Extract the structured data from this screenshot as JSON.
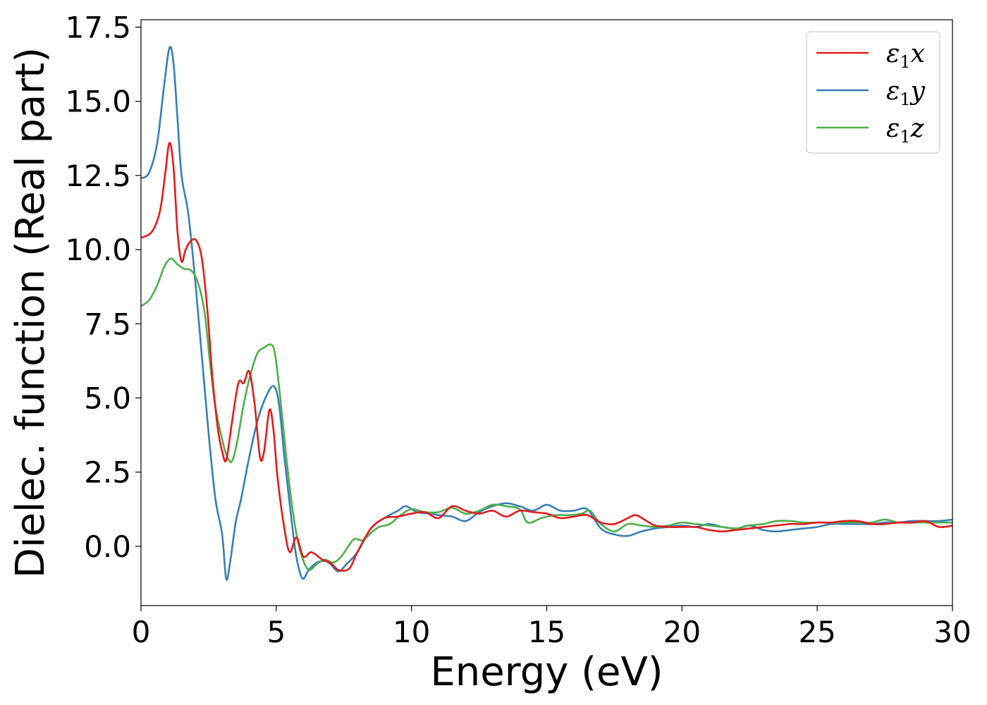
{
  "chart_data": {
    "type": "line",
    "xlabel": "Energy (eV)",
    "ylabel": "Dielec. function (Real part)",
    "xlim": [
      0,
      30
    ],
    "ylim": [
      -2.0,
      17.75
    ],
    "xticks": [
      0,
      5,
      10,
      15,
      20,
      25,
      30
    ],
    "xtick_labels": [
      "0",
      "5",
      "10",
      "15",
      "20",
      "25",
      "30"
    ],
    "yticks": [
      0.0,
      2.5,
      5.0,
      7.5,
      10.0,
      12.5,
      15.0,
      17.5
    ],
    "ytick_labels": [
      "0.0",
      "2.5",
      "5.0",
      "7.5",
      "10.0",
      "12.5",
      "15.0",
      "17.5"
    ],
    "grid": false,
    "legend_position": "top-right",
    "series": [
      {
        "name": "ε1x",
        "label_main": "ε",
        "label_sub": "1",
        "label_tail": "x",
        "color": "#e41a1c",
        "points": [
          [
            0,
            10.4
          ],
          [
            0.4,
            10.6
          ],
          [
            0.7,
            11.3
          ],
          [
            0.9,
            12.6
          ],
          [
            1.05,
            13.6
          ],
          [
            1.2,
            12.8
          ],
          [
            1.35,
            10.6
          ],
          [
            1.5,
            9.6
          ],
          [
            1.65,
            10.0
          ],
          [
            1.85,
            10.3
          ],
          [
            2.05,
            10.3
          ],
          [
            2.25,
            9.7
          ],
          [
            2.45,
            8.0
          ],
          [
            2.65,
            5.6
          ],
          [
            2.85,
            3.9
          ],
          [
            3.0,
            3.2
          ],
          [
            3.15,
            2.9
          ],
          [
            3.35,
            4.1
          ],
          [
            3.6,
            5.5
          ],
          [
            3.8,
            5.5
          ],
          [
            4.0,
            5.9
          ],
          [
            4.2,
            4.8
          ],
          [
            4.4,
            3.0
          ],
          [
            4.55,
            3.2
          ],
          [
            4.75,
            4.6
          ],
          [
            4.9,
            3.9
          ],
          [
            5.05,
            2.3
          ],
          [
            5.3,
            0.6
          ],
          [
            5.5,
            -0.2
          ],
          [
            5.75,
            0.3
          ],
          [
            6.0,
            -0.35
          ],
          [
            6.3,
            -0.2
          ],
          [
            6.7,
            -0.45
          ],
          [
            7.0,
            -0.55
          ],
          [
            7.3,
            -0.8
          ],
          [
            7.7,
            -0.75
          ],
          [
            8.0,
            -0.2
          ],
          [
            8.5,
            0.6
          ],
          [
            9.0,
            0.95
          ],
          [
            9.5,
            1.0
          ],
          [
            10.0,
            1.1
          ],
          [
            10.5,
            1.15
          ],
          [
            11.0,
            0.95
          ],
          [
            11.5,
            1.35
          ],
          [
            12.0,
            1.2
          ],
          [
            12.5,
            1.1
          ],
          [
            13.0,
            1.2
          ],
          [
            13.5,
            1.0
          ],
          [
            14.0,
            1.2
          ],
          [
            14.5,
            1.15
          ],
          [
            15.0,
            1.1
          ],
          [
            15.5,
            0.95
          ],
          [
            16.0,
            1.0
          ],
          [
            16.5,
            1.05
          ],
          [
            17.0,
            0.8
          ],
          [
            17.5,
            0.75
          ],
          [
            18.0,
            0.95
          ],
          [
            18.3,
            1.05
          ],
          [
            18.7,
            0.85
          ],
          [
            19.0,
            0.7
          ],
          [
            19.5,
            0.65
          ],
          [
            20.0,
            0.65
          ],
          [
            20.5,
            0.65
          ],
          [
            21.0,
            0.55
          ],
          [
            21.5,
            0.5
          ],
          [
            22.0,
            0.55
          ],
          [
            22.5,
            0.6
          ],
          [
            23.0,
            0.65
          ],
          [
            23.5,
            0.7
          ],
          [
            24.0,
            0.75
          ],
          [
            24.5,
            0.75
          ],
          [
            25.0,
            0.8
          ],
          [
            25.5,
            0.8
          ],
          [
            26.0,
            0.85
          ],
          [
            26.5,
            0.85
          ],
          [
            27.0,
            0.75
          ],
          [
            27.5,
            0.75
          ],
          [
            28.0,
            0.8
          ],
          [
            28.5,
            0.8
          ],
          [
            29.0,
            0.85
          ],
          [
            29.5,
            0.65
          ],
          [
            30.0,
            0.7
          ]
        ]
      },
      {
        "name": "ε1y",
        "label_main": "ε",
        "label_sub": "1",
        "label_tail": "y",
        "color": "#377eb8",
        "points": [
          [
            0,
            12.4
          ],
          [
            0.3,
            12.6
          ],
          [
            0.6,
            13.6
          ],
          [
            0.85,
            15.5
          ],
          [
            1.05,
            16.8
          ],
          [
            1.2,
            16.3
          ],
          [
            1.35,
            14.4
          ],
          [
            1.5,
            12.5
          ],
          [
            1.75,
            11.2
          ],
          [
            2.0,
            9.0
          ],
          [
            2.25,
            6.4
          ],
          [
            2.5,
            3.8
          ],
          [
            2.75,
            1.6
          ],
          [
            3.0,
            0.4
          ],
          [
            3.15,
            -1.1
          ],
          [
            3.3,
            -0.5
          ],
          [
            3.5,
            0.8
          ],
          [
            3.7,
            1.6
          ],
          [
            4.0,
            3.0
          ],
          [
            4.3,
            4.2
          ],
          [
            4.6,
            5.0
          ],
          [
            4.9,
            5.4
          ],
          [
            5.1,
            4.8
          ],
          [
            5.3,
            3.0
          ],
          [
            5.5,
            1.4
          ],
          [
            5.7,
            -0.1
          ],
          [
            5.85,
            -0.8
          ],
          [
            6.0,
            -1.1
          ],
          [
            6.2,
            -0.8
          ],
          [
            6.5,
            -0.55
          ],
          [
            6.8,
            -0.5
          ],
          [
            7.0,
            -0.6
          ],
          [
            7.3,
            -0.85
          ],
          [
            7.6,
            -0.6
          ],
          [
            8.0,
            -0.2
          ],
          [
            8.5,
            0.6
          ],
          [
            9.0,
            0.95
          ],
          [
            9.5,
            1.2
          ],
          [
            9.8,
            1.35
          ],
          [
            10.2,
            1.15
          ],
          [
            10.7,
            1.1
          ],
          [
            11.0,
            1.05
          ],
          [
            11.5,
            1.0
          ],
          [
            12.0,
            0.85
          ],
          [
            12.5,
            1.15
          ],
          [
            13.0,
            1.35
          ],
          [
            13.5,
            1.45
          ],
          [
            14.0,
            1.35
          ],
          [
            14.5,
            1.2
          ],
          [
            15.0,
            1.4
          ],
          [
            15.5,
            1.2
          ],
          [
            16.0,
            1.2
          ],
          [
            16.5,
            1.25
          ],
          [
            17.0,
            0.6
          ],
          [
            17.5,
            0.4
          ],
          [
            18.0,
            0.35
          ],
          [
            18.5,
            0.5
          ],
          [
            19.0,
            0.6
          ],
          [
            19.5,
            0.65
          ],
          [
            20.0,
            0.7
          ],
          [
            20.5,
            0.65
          ],
          [
            21.0,
            0.75
          ],
          [
            21.5,
            0.65
          ],
          [
            22.0,
            0.6
          ],
          [
            22.5,
            0.7
          ],
          [
            23.0,
            0.55
          ],
          [
            23.5,
            0.5
          ],
          [
            24.0,
            0.55
          ],
          [
            24.5,
            0.6
          ],
          [
            25.0,
            0.65
          ],
          [
            25.5,
            0.75
          ],
          [
            26.0,
            0.75
          ],
          [
            26.5,
            0.75
          ],
          [
            27.0,
            0.75
          ],
          [
            27.5,
            0.8
          ],
          [
            28.0,
            0.8
          ],
          [
            28.5,
            0.85
          ],
          [
            29.0,
            0.85
          ],
          [
            29.5,
            0.85
          ],
          [
            30.0,
            0.9
          ]
        ]
      },
      {
        "name": "ε1z",
        "label_main": "ε",
        "label_sub": "1",
        "label_tail": "z",
        "color": "#4daf4a",
        "points": [
          [
            0,
            8.1
          ],
          [
            0.3,
            8.3
          ],
          [
            0.6,
            8.8
          ],
          [
            0.85,
            9.4
          ],
          [
            1.1,
            9.7
          ],
          [
            1.35,
            9.5
          ],
          [
            1.6,
            9.35
          ],
          [
            1.85,
            9.3
          ],
          [
            2.1,
            8.9
          ],
          [
            2.35,
            7.9
          ],
          [
            2.55,
            6.2
          ],
          [
            2.75,
            4.7
          ],
          [
            3.0,
            3.6
          ],
          [
            3.15,
            3.1
          ],
          [
            3.35,
            2.85
          ],
          [
            3.55,
            3.5
          ],
          [
            3.8,
            4.8
          ],
          [
            4.05,
            5.8
          ],
          [
            4.3,
            6.5
          ],
          [
            4.55,
            6.7
          ],
          [
            4.8,
            6.8
          ],
          [
            4.95,
            6.5
          ],
          [
            5.15,
            5.0
          ],
          [
            5.35,
            3.2
          ],
          [
            5.55,
            1.6
          ],
          [
            5.75,
            0.4
          ],
          [
            5.95,
            -0.35
          ],
          [
            6.2,
            -0.8
          ],
          [
            6.5,
            -0.6
          ],
          [
            6.8,
            -0.45
          ],
          [
            7.1,
            -0.55
          ],
          [
            7.4,
            -0.35
          ],
          [
            7.7,
            0.05
          ],
          [
            7.9,
            0.25
          ],
          [
            8.2,
            0.2
          ],
          [
            8.5,
            0.45
          ],
          [
            8.8,
            0.65
          ],
          [
            9.2,
            0.75
          ],
          [
            9.6,
            1.05
          ],
          [
            10.0,
            1.25
          ],
          [
            10.5,
            1.15
          ],
          [
            11.0,
            1.15
          ],
          [
            11.5,
            1.3
          ],
          [
            12.0,
            1.1
          ],
          [
            12.5,
            1.2
          ],
          [
            13.0,
            1.4
          ],
          [
            13.5,
            1.35
          ],
          [
            14.0,
            1.25
          ],
          [
            14.3,
            0.8
          ],
          [
            14.8,
            0.95
          ],
          [
            15.3,
            1.05
          ],
          [
            15.8,
            1.05
          ],
          [
            16.3,
            1.1
          ],
          [
            16.6,
            1.2
          ],
          [
            17.0,
            0.75
          ],
          [
            17.5,
            0.5
          ],
          [
            18.0,
            0.75
          ],
          [
            18.5,
            0.7
          ],
          [
            19.0,
            0.65
          ],
          [
            19.5,
            0.7
          ],
          [
            20.0,
            0.8
          ],
          [
            20.5,
            0.75
          ],
          [
            21.0,
            0.7
          ],
          [
            21.5,
            0.65
          ],
          [
            22.0,
            0.6
          ],
          [
            22.5,
            0.7
          ],
          [
            23.0,
            0.75
          ],
          [
            23.5,
            0.85
          ],
          [
            24.0,
            0.85
          ],
          [
            24.5,
            0.8
          ],
          [
            25.0,
            0.8
          ],
          [
            25.5,
            0.8
          ],
          [
            26.0,
            0.8
          ],
          [
            26.5,
            0.8
          ],
          [
            27.0,
            0.8
          ],
          [
            27.5,
            0.9
          ],
          [
            28.0,
            0.8
          ],
          [
            28.5,
            0.8
          ],
          [
            29.0,
            0.8
          ],
          [
            29.5,
            0.8
          ],
          [
            30.0,
            0.8
          ]
        ]
      }
    ]
  }
}
